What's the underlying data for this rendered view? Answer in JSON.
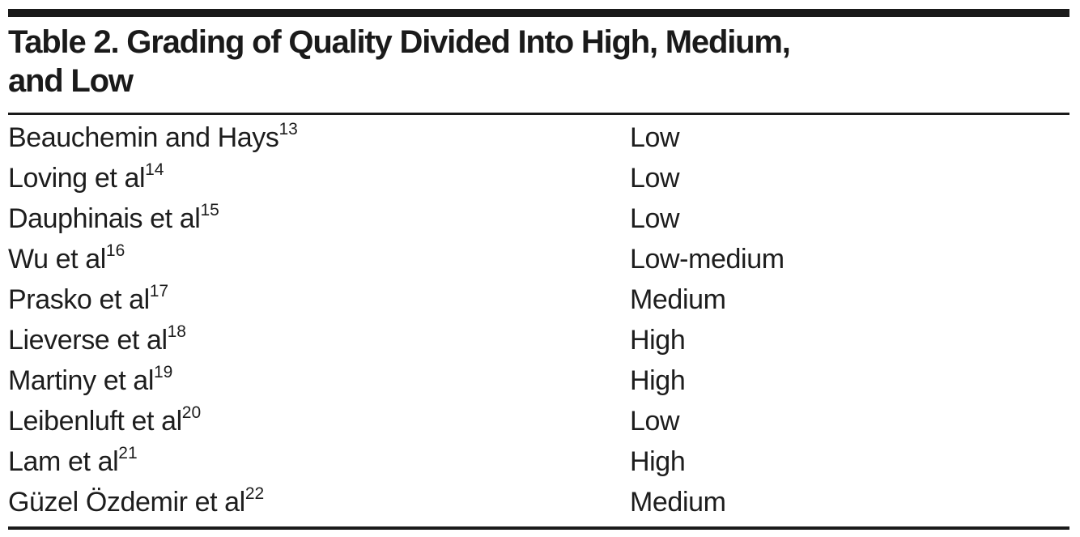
{
  "page": {
    "background_color": "#ffffff",
    "rule_color": "#1a1a1a",
    "text_color": "#1d1d1d"
  },
  "table": {
    "title_line1": "Table 2. Grading of Quality Divided Into High, Medium,",
    "title_line2": "and Low",
    "rows": [
      {
        "study": "Beauchemin and Hays",
        "ref": "13",
        "grade": "Low"
      },
      {
        "study": "Loving et al",
        "ref": "14",
        "grade": "Low"
      },
      {
        "study": "Dauphinais et al",
        "ref": "15",
        "grade": "Low"
      },
      {
        "study": "Wu et al",
        "ref": "16",
        "grade": "Low-medium"
      },
      {
        "study": "Prasko et al",
        "ref": "17",
        "grade": "Medium"
      },
      {
        "study": "Lieverse et al",
        "ref": "18",
        "grade": "High"
      },
      {
        "study": "Martiny et al",
        "ref": "19",
        "grade": "High"
      },
      {
        "study": "Leibenluft et al",
        "ref": "20",
        "grade": "Low"
      },
      {
        "study": "Lam et al",
        "ref": "21",
        "grade": "High"
      },
      {
        "study": "Güzel Özdemir et al",
        "ref": "22",
        "grade": "Medium"
      }
    ]
  }
}
